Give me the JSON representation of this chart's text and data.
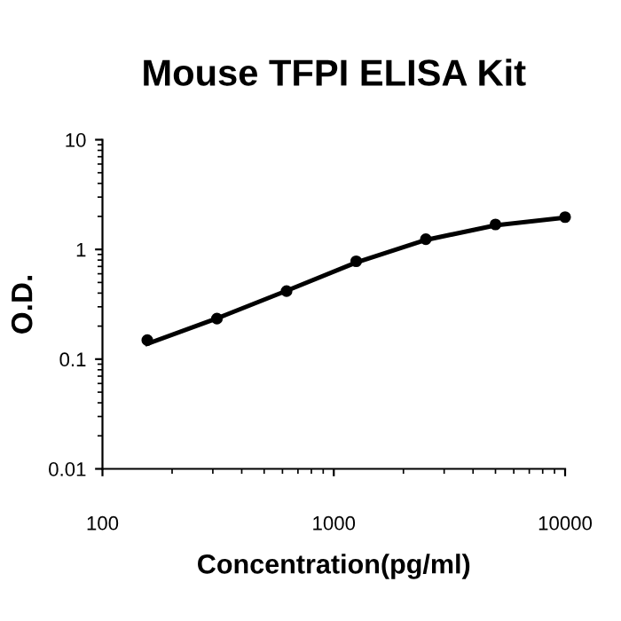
{
  "chart_data": {
    "type": "line",
    "title": "Mouse TFPI ELISA Kit",
    "xlabel": "Concentration(pg/ml)",
    "ylabel": "O.D.",
    "log": "xy",
    "xlim": [
      100,
      10000
    ],
    "xticks": [
      100,
      1000,
      10000
    ],
    "ylim": [
      0.01,
      10
    ],
    "yticks": [
      0.01,
      0.1,
      1,
      10
    ],
    "grid": false,
    "legend": false,
    "series": [
      {
        "type": "scatter",
        "color": "#000000",
        "marker": "circle",
        "x": [
          156.25,
          312.5,
          625,
          1250,
          2500,
          5000,
          10000
        ],
        "values": [
          0.149,
          0.234,
          0.417,
          0.78,
          1.24,
          1.69,
          1.97
        ]
      },
      {
        "color": "#000000",
        "marker": "none",
        "line_style": "solid",
        "x": [
          156.25,
          312.5,
          625,
          1250,
          2500,
          5000,
          10000
        ],
        "values": [
          0.138,
          0.235,
          0.42,
          0.76,
          1.22,
          1.66,
          1.95
        ]
      }
    ]
  }
}
